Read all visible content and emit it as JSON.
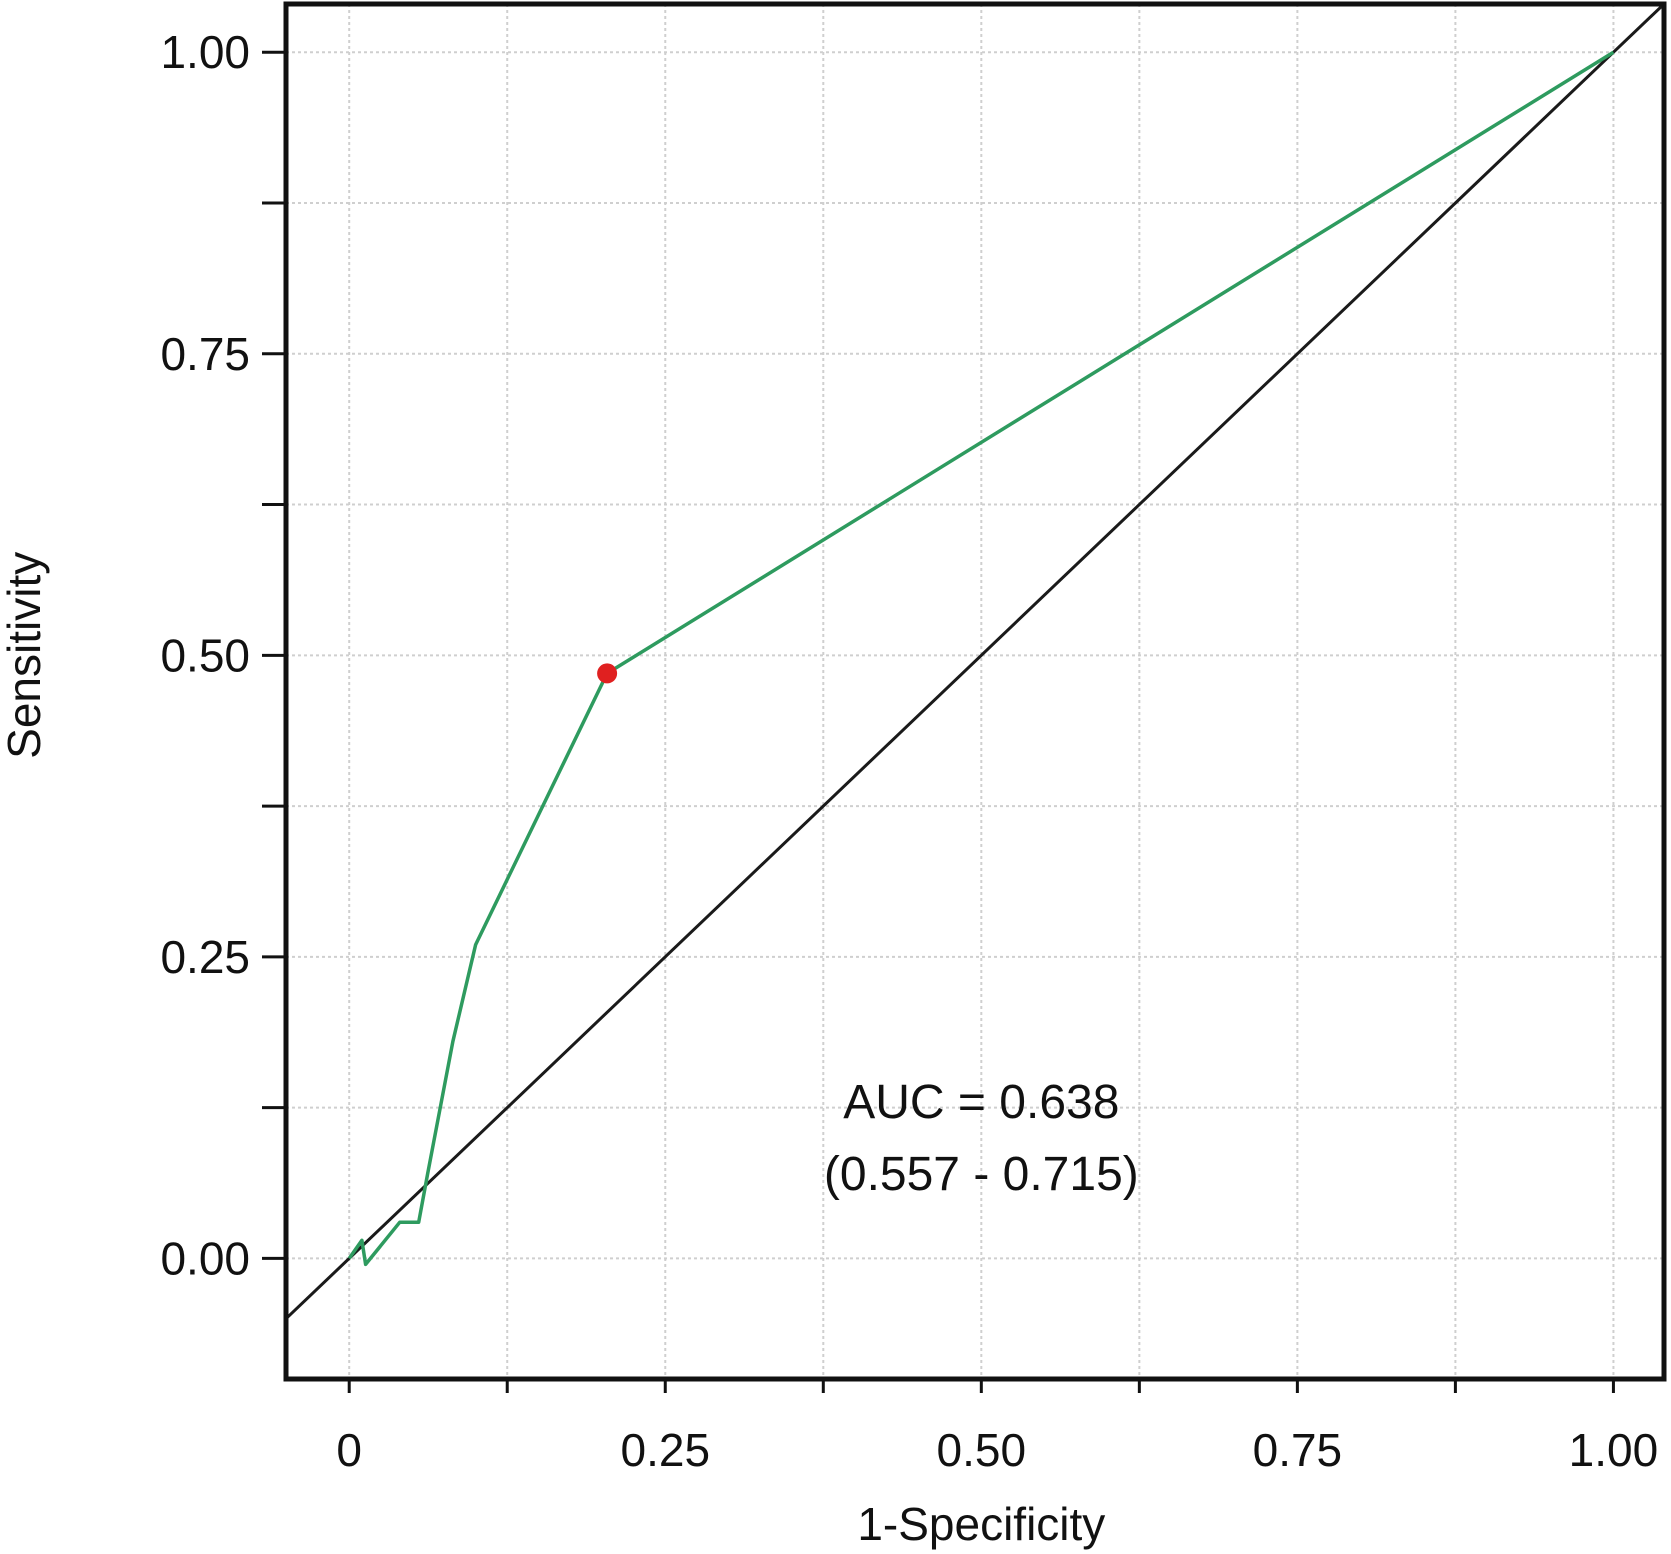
{
  "chart_data": {
    "type": "line",
    "title": "",
    "xlabel": "1-Specificity",
    "ylabel": "Sensitivity",
    "xlim": [
      -0.05,
      1.04
    ],
    "ylim": [
      -0.1,
      1.04
    ],
    "x_ticks": [
      {
        "value": 0,
        "label": "0"
      },
      {
        "value": 0.25,
        "label": "0.25"
      },
      {
        "value": 0.5,
        "label": "0.50"
      },
      {
        "value": 0.75,
        "label": "0.75"
      },
      {
        "value": 1,
        "label": "1.00"
      }
    ],
    "x_minor_ticks": [
      0.125,
      0.375,
      0.625,
      0.875
    ],
    "y_ticks": [
      {
        "value": 0,
        "label": "0.00"
      },
      {
        "value": 0.25,
        "label": "0.25"
      },
      {
        "value": 0.5,
        "label": "0.50"
      },
      {
        "value": 0.75,
        "label": "0.75"
      },
      {
        "value": 1,
        "label": "1.00"
      }
    ],
    "y_minor_ticks": [
      0.125,
      0.375,
      0.625,
      0.875
    ],
    "grid": true,
    "series": [
      {
        "kind": "roc-curve",
        "color": "#2e9b5f",
        "x": [
          0,
          0.01,
          0.013,
          0.04,
          0.055,
          0.062,
          0.082,
          0.1,
          0.16,
          0.204,
          1
        ],
        "y": [
          0,
          0.015,
          -0.005,
          0.03,
          0.03,
          0.07,
          0.18,
          0.26,
          0.39,
          0.485,
          1
        ]
      },
      {
        "kind": "reference-diagonal",
        "color": "#1a1a1a",
        "x": [
          -0.05,
          1.04
        ],
        "y": [
          -0.05,
          1.04
        ]
      }
    ],
    "highlight_point": {
      "x": 0.204,
      "y": 0.485,
      "color": "#e02020"
    },
    "annotation": {
      "line1": "AUC = 0.638",
      "line2": "(0.557 - 0.715)",
      "x": 0.5,
      "y": 0.1
    }
  }
}
